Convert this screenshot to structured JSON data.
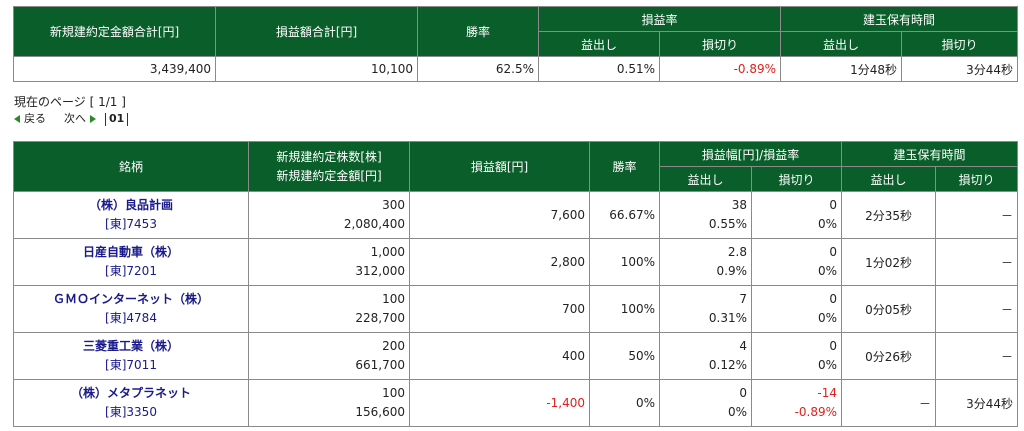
{
  "summary": {
    "headers": {
      "total_amount": "新規建約定金額合計[円]",
      "pl_total": "損益額合計[円]",
      "win_rate": "勝率",
      "pl_rate_group": "損益率",
      "hold_time_group": "建玉保有時間",
      "profit": "益出し",
      "loss": "損切り"
    },
    "values": {
      "total_amount": "3,439,400",
      "pl_total": "10,100",
      "win_rate": "62.5%",
      "profit_rate": "0.51%",
      "loss_rate": "-0.89%",
      "profit_time": "1分48秒",
      "loss_time": "3分44秒"
    }
  },
  "pager": {
    "current_page": "現在のページ [ 1/1 ]",
    "prev": "戻る",
    "next": "次へ",
    "page_num": "01"
  },
  "detail": {
    "headers": {
      "stock": "銘柄",
      "qty_line1": "新規建約定株数[株]",
      "qty_line2": "新規建約定金額[円]",
      "pl_amount": "損益額[円]",
      "win_rate": "勝率",
      "range_group": "損益幅[円]/損益率",
      "hold_time_group": "建玉保有時間",
      "profit": "益出し",
      "loss": "損切り"
    },
    "rows": [
      {
        "name": "（株）良品計画",
        "code": "[東]7453",
        "qty": "300",
        "amount": "2,080,400",
        "pl": "7,600",
        "win_rate": "66.67%",
        "profit_range": "38",
        "profit_rate": "0.55%",
        "loss_range": "0",
        "loss_rate": "0%",
        "profit_time": "2分35秒",
        "loss_time": "－"
      },
      {
        "name": "日産自動車（株）",
        "code": "[東]7201",
        "qty": "1,000",
        "amount": "312,000",
        "pl": "2,800",
        "win_rate": "100%",
        "profit_range": "2.8",
        "profit_rate": "0.9%",
        "loss_range": "0",
        "loss_rate": "0%",
        "profit_time": "1分02秒",
        "loss_time": "－"
      },
      {
        "name": "ＧＭＯインターネット（株）",
        "code": "[東]4784",
        "qty": "100",
        "amount": "228,700",
        "pl": "700",
        "win_rate": "100%",
        "profit_range": "7",
        "profit_rate": "0.31%",
        "loss_range": "0",
        "loss_rate": "0%",
        "profit_time": "0分05秒",
        "loss_time": "－"
      },
      {
        "name": "三菱重工業（株）",
        "code": "[東]7011",
        "qty": "200",
        "amount": "661,700",
        "pl": "400",
        "win_rate": "50%",
        "profit_range": "4",
        "profit_rate": "0.12%",
        "loss_range": "0",
        "loss_rate": "0%",
        "profit_time": "0分26秒",
        "loss_time": "－"
      },
      {
        "name": "（株）メタプラネット",
        "code": "[東]3350",
        "qty": "100",
        "amount": "156,600",
        "pl": "-1,400",
        "win_rate": "0%",
        "profit_range": "0",
        "profit_rate": "0%",
        "loss_range": "-14",
        "loss_rate": "-0.89%",
        "profit_time": "－",
        "loss_time": "3分44秒"
      }
    ]
  },
  "colors": {
    "header_bg": "#0a5e2a",
    "negative": "#e0201c",
    "stock_name": "#1a1a8c",
    "pager_arrow": "#2a8a2a"
  }
}
